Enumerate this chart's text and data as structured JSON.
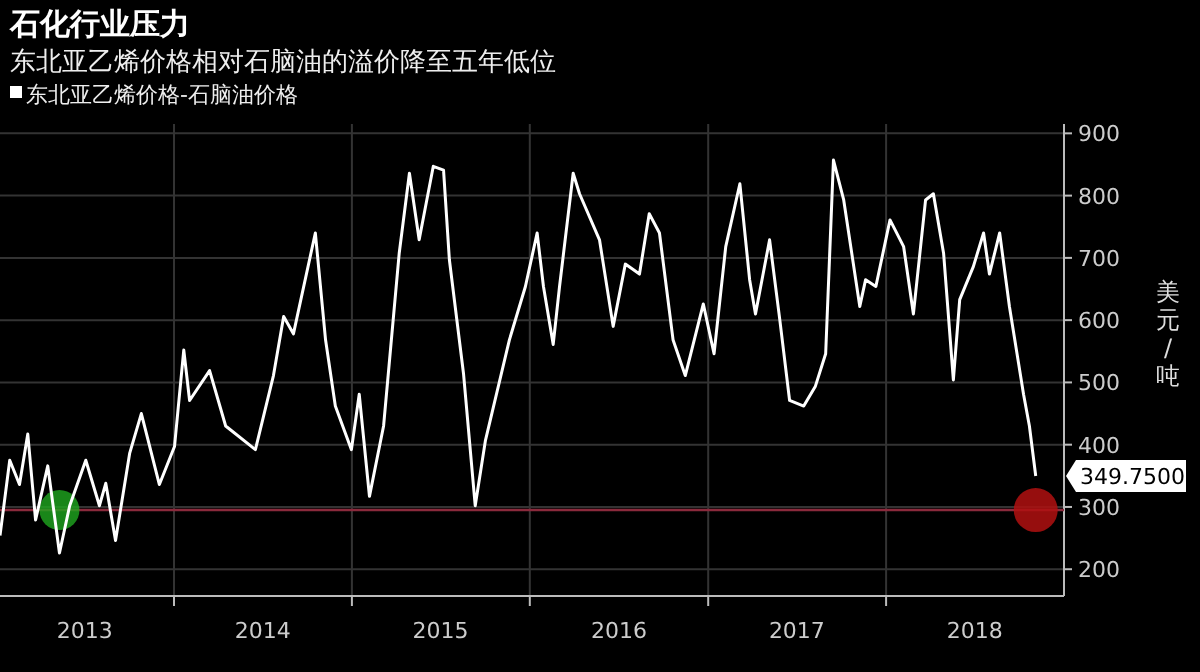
{
  "chart_data": {
    "type": "line",
    "title": "石化行业压力",
    "subtitle": "东北亚乙烯价格相对石脑油的溢价降至五年低位",
    "ylabel": "美元/吨",
    "legend": "top left",
    "grid": true,
    "x": [
      "2013-01-09",
      "2013-01-29",
      "2013-02-18",
      "2013-03-07",
      "2013-03-23",
      "2013-04-17",
      "2013-05-11",
      "2013-06-01",
      "2013-07-04",
      "2013-08-01",
      "2013-08-14",
      "2013-09-03",
      "2013-10-02",
      "2013-10-26",
      "2013-12-02",
      "2014-01-02",
      "2014-01-21",
      "2014-02-02",
      "2014-03-15",
      "2014-04-17",
      "2014-06-17",
      "2014-07-24",
      "2014-08-14",
      "2014-09-03",
      "2014-10-18",
      "2014-11-08",
      "2014-11-28",
      "2014-12-31",
      "2015-01-16",
      "2015-02-06",
      "2015-03-07",
      "2015-04-08",
      "2015-04-29",
      "2015-05-19",
      "2015-06-17",
      "2015-07-08",
      "2015-07-20",
      "2015-08-18",
      "2015-09-11",
      "2015-10-02",
      "2015-11-20",
      "2015-12-23",
      "2016-01-16",
      "2016-01-29",
      "2016-02-18",
      "2016-03-02",
      "2016-03-30",
      "2016-04-12",
      "2016-05-23",
      "2016-06-20",
      "2016-07-15",
      "2016-08-13",
      "2016-09-02",
      "2016-09-23",
      "2016-10-21",
      "2016-11-15",
      "2016-12-22",
      "2017-01-13",
      "2017-02-06",
      "2017-03-07",
      "2017-03-27",
      "2017-04-08",
      "2017-05-07",
      "2017-05-28",
      "2017-06-17",
      "2017-07-16",
      "2017-08-09",
      "2017-08-30",
      "2017-09-15",
      "2017-10-06",
      "2017-11-08",
      "2017-11-20",
      "2017-12-11",
      "2018-01-09",
      "2018-02-06",
      "2018-02-26",
      "2018-03-23",
      "2018-04-08",
      "2018-04-29",
      "2018-05-19",
      "2018-06-01",
      "2018-06-29",
      "2018-07-20",
      "2018-08-01",
      "2018-08-22",
      "2018-09-11",
      "2018-10-10",
      "2018-10-22",
      "2018-11-04"
    ],
    "series": [
      {
        "name": "东北亚乙烯价格-石脑油价格",
        "color": "#ffffff",
        "values": [
          254,
          375,
          336,
          417,
          279,
          366,
          226,
          302,
          375,
          302,
          338,
          246,
          386,
          450,
          336,
          397,
          552,
          471,
          519,
          430,
          392,
          511,
          606,
          578,
          740,
          568,
          462,
          392,
          481,
          317,
          430,
          707,
          836,
          729,
          847,
          841,
          697,
          514,
          302,
          407,
          568,
          654,
          740,
          654,
          561,
          654,
          836,
          803,
          729,
          590,
          690,
          674,
          771,
          740,
          568,
          511,
          626,
          546,
          718,
          819,
          665,
          610,
          729,
          600,
          471,
          462,
          494,
          546,
          857,
          793,
          622,
          665,
          654,
          761,
          718,
          610,
          793,
          803,
          707,
          504,
          633,
          686,
          740,
          674,
          740,
          622,
          481,
          430,
          349.75
        ]
      }
    ],
    "xlim": [
      "2013-01-09",
      "2019-01-01"
    ],
    "xticks": [
      {
        "value": "2013-07-02",
        "label": "2013"
      },
      {
        "value": "2014-01-01",
        "label": null
      },
      {
        "value": "2014-07-02",
        "label": "2014"
      },
      {
        "value": "2015-01-01",
        "label": null
      },
      {
        "value": "2015-07-02",
        "label": "2015"
      },
      {
        "value": "2016-01-01",
        "label": null
      },
      {
        "value": "2016-07-02",
        "label": "2016"
      },
      {
        "value": "2017-01-01",
        "label": null
      },
      {
        "value": "2017-07-02",
        "label": "2017"
      },
      {
        "value": "2018-01-01",
        "label": null
      },
      {
        "value": "2018-07-02",
        "label": "2018"
      }
    ],
    "ylim": [
      157,
      915
    ],
    "yticks": [
      200,
      300,
      400,
      500,
      600,
      700,
      800,
      900
    ],
    "ref_lines": [
      {
        "axis": "y",
        "value": 295,
        "label": null,
        "color": "#8a2a3c"
      }
    ],
    "annotations": [
      {
        "text": "349.7500",
        "x": "2018-11-04",
        "y": 349.75
      }
    ]
  }
}
